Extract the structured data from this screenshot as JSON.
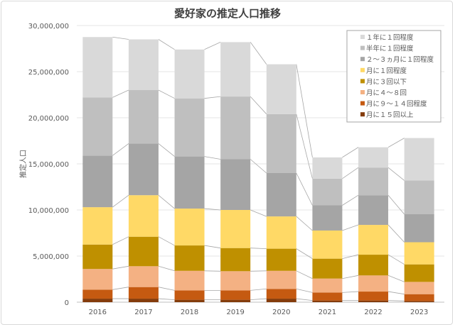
{
  "chart_data": {
    "type": "bar",
    "stacked": true,
    "title": "愛好家の推定人口推移",
    "xlabel": "",
    "ylabel": "推定人口",
    "ylim": [
      0,
      30000000
    ],
    "yticks": [
      0,
      5000000,
      10000000,
      15000000,
      20000000,
      25000000,
      30000000
    ],
    "ytick_labels": [
      "0",
      "5,000,000",
      "10,000,000",
      "15,000,000",
      "20,000,000",
      "25,000,000",
      "30,000,000"
    ],
    "grid": true,
    "legend_position": "top-right",
    "categories": [
      "2016",
      "2017",
      "2018",
      "2019",
      "2020",
      "2021",
      "2022",
      "2023"
    ],
    "series": [
      {
        "name": "月に１５回以上",
        "color": "#843c0c",
        "values": [
          380000,
          380000,
          260000,
          260000,
          380000,
          180000,
          180000,
          130000
        ]
      },
      {
        "name": "月に９～１４回程度",
        "color": "#c55a11",
        "values": [
          980000,
          1260000,
          1020000,
          1020000,
          1060000,
          870000,
          970000,
          740000
        ]
      },
      {
        "name": "月に４～８回",
        "color": "#f4b183",
        "values": [
          2240000,
          2260000,
          2120000,
          2080000,
          1960000,
          1510000,
          1750000,
          1330000
        ]
      },
      {
        "name": "月に３回以下",
        "color": "#bf9000",
        "values": [
          2650000,
          3200000,
          2750000,
          2510000,
          2400000,
          2160000,
          2250000,
          1900000
        ]
      },
      {
        "name": "月に１回程度",
        "color": "#ffd966",
        "values": [
          4050000,
          4500000,
          4000000,
          4130000,
          3500000,
          3050000,
          3230000,
          2400000
        ]
      },
      {
        "name": "２～３ヵ月に１回程度",
        "color": "#a5a5a5",
        "values": [
          5600000,
          5600000,
          5650000,
          5500000,
          4700000,
          2730000,
          3220000,
          3040000
        ]
      },
      {
        "name": "半年に１回程度",
        "color": "#bfbfbf",
        "values": [
          6300000,
          5800000,
          6300000,
          6800000,
          6400000,
          2900000,
          3000000,
          3660000
        ]
      },
      {
        "name": "１年に１回程度",
        "color": "#d9d9d9",
        "values": [
          6550000,
          5500000,
          5300000,
          5900000,
          5400000,
          2300000,
          2200000,
          4600000
        ]
      }
    ]
  }
}
